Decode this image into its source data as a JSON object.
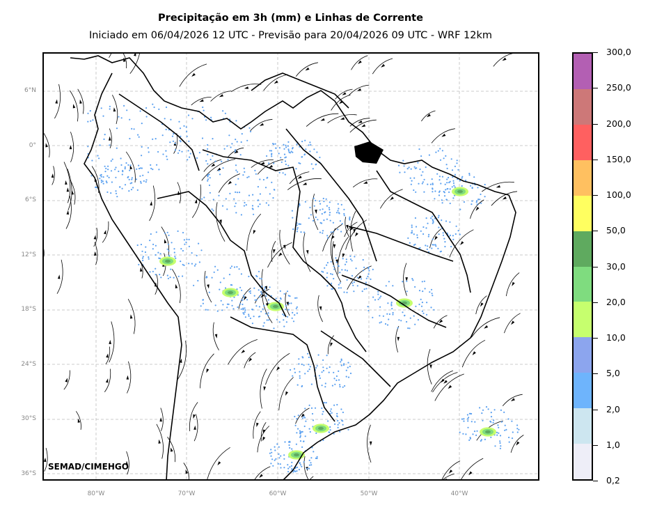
{
  "header": {
    "title": "Precipitação em 3h (mm) e Linhas de Corrente",
    "subtitle": "Iniciado em 06/04/2026 12 UTC - Previsão para 20/04/2026 09 UTC - WRF 12km"
  },
  "map": {
    "watermark": "SEMAD/CIMEHGO",
    "lat_labels": [
      "6°N",
      "0°",
      "6°S",
      "12°S",
      "18°S",
      "24°S",
      "30°S",
      "36°S"
    ],
    "lon_labels": [
      "80°W",
      "70°W",
      "60°W",
      "50°W",
      "40°W"
    ],
    "extent": {
      "lon_min": -85.8,
      "lon_max": -31.2,
      "lat_min": -36.3,
      "lat_max": 10.3
    }
  },
  "colorbar": {
    "labels": [
      "300,0",
      "250,0",
      "200,0",
      "150,0",
      "100,0",
      "50,0",
      "30,0",
      "20,0",
      "10,0",
      "5,0",
      "2,0",
      "1,0",
      "0,2"
    ],
    "colors": [
      "#b35fb3",
      "#cd7878",
      "#ff6060",
      "#ffc060",
      "#ffff60",
      "#5faa5f",
      "#7fdc7f",
      "#c6ff6e",
      "#8ca5ee",
      "#6eb4fc",
      "#cde6f0",
      "#eeeef8"
    ]
  }
}
